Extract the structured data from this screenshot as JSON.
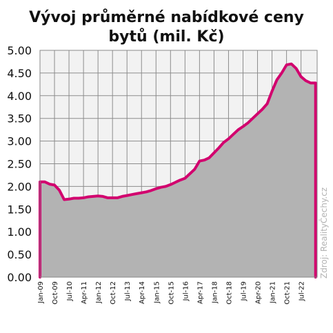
{
  "chart_data": {
    "type": "area",
    "title": [
      "Vývoj průměrné nabídkové ceny",
      "bytů (mil. Kč)"
    ],
    "xlabel": "",
    "ylabel": "",
    "ylim": [
      0,
      5
    ],
    "yticks": [
      "0.00",
      "0.50",
      "1.00",
      "1.50",
      "2.00",
      "2.50",
      "3.00",
      "3.50",
      "4.00",
      "4.50",
      "5.00"
    ],
    "x_tick_labels": [
      "Jan-09",
      "Oct-09",
      "Jul-10",
      "Apr-11",
      "Jan-12",
      "Oct-12",
      "Jul-13",
      "Apr-14",
      "Jan-15",
      "Oct-15",
      "Jul-16",
      "Apr-17",
      "Jan-18",
      "Oct-18",
      "Jul-19",
      "Apr-20",
      "Jan-21",
      "Oct-21",
      "Jul-22"
    ],
    "x_range": [
      "2009-01",
      "2023-05"
    ],
    "grid": true,
    "background": "#f2f2f2",
    "area_color": "#b3b3b3",
    "line_color": "#d2006e",
    "source_note": "Zdroj: RealityČechy.cz",
    "series": [
      {
        "x": [
          "2009-01",
          "2009-04",
          "2009-07",
          "2009-10",
          "2010-01",
          "2010-04",
          "2010-07",
          "2010-10",
          "2011-01",
          "2011-04",
          "2011-07",
          "2011-10",
          "2012-01",
          "2012-04",
          "2012-07",
          "2012-10",
          "2013-01",
          "2013-04",
          "2013-07",
          "2013-10",
          "2014-01",
          "2014-04",
          "2014-07",
          "2014-10",
          "2015-01",
          "2015-04",
          "2015-07",
          "2015-10",
          "2016-01",
          "2016-04",
          "2016-07",
          "2016-10",
          "2017-01",
          "2017-04",
          "2017-07",
          "2017-10",
          "2018-01",
          "2018-04",
          "2018-07",
          "2018-10",
          "2019-01",
          "2019-04",
          "2019-07",
          "2019-10",
          "2020-01",
          "2020-04",
          "2020-07",
          "2020-10",
          "2021-01",
          "2021-04",
          "2021-07",
          "2021-10",
          "2022-01",
          "2022-04",
          "2022-07",
          "2022-10",
          "2023-01",
          "2023-04"
        ],
        "values": [
          2.1,
          2.1,
          2.05,
          2.03,
          1.92,
          1.71,
          1.72,
          1.74,
          1.74,
          1.75,
          1.77,
          1.78,
          1.79,
          1.78,
          1.75,
          1.75,
          1.75,
          1.78,
          1.8,
          1.82,
          1.84,
          1.86,
          1.88,
          1.91,
          1.95,
          1.98,
          2.0,
          2.04,
          2.09,
          2.14,
          2.18,
          2.28,
          2.38,
          2.56,
          2.58,
          2.63,
          2.74,
          2.85,
          2.97,
          3.05,
          3.15,
          3.25,
          3.32,
          3.4,
          3.5,
          3.6,
          3.7,
          3.82,
          4.1,
          4.35,
          4.5,
          4.68,
          4.7,
          4.6,
          4.42,
          4.33,
          4.28,
          4.28
        ]
      }
    ]
  }
}
